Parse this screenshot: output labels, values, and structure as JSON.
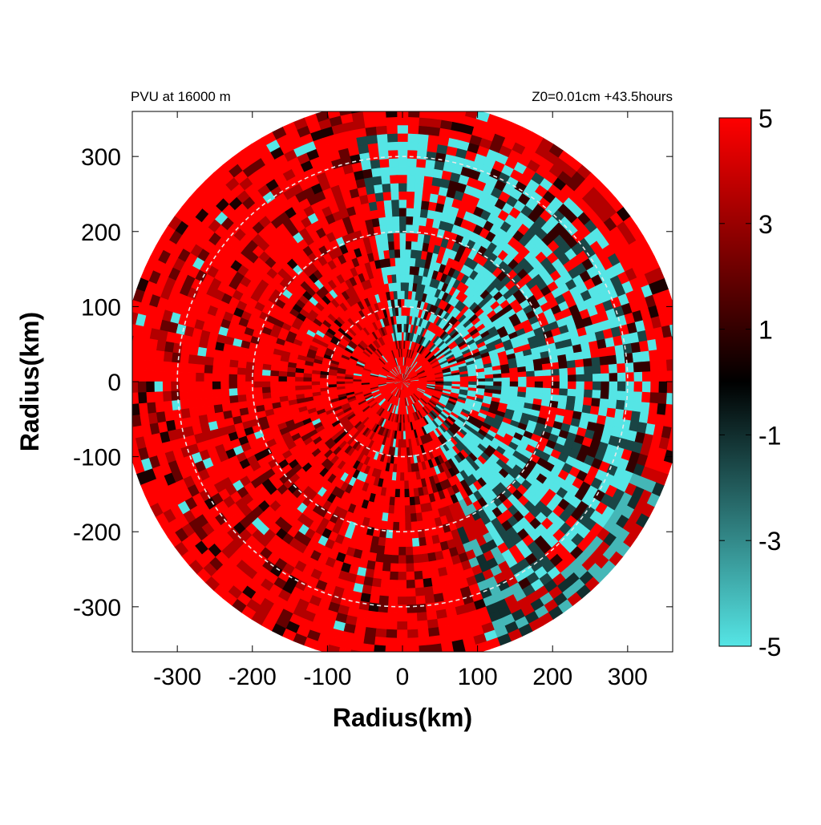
{
  "chart_data": {
    "type": "heatmap",
    "title_left": "PVU at 16000 m",
    "title_right": "Z0=0.01cm  +43.5hours",
    "xlabel": "Radius(km)",
    "ylabel": "Radius(km)",
    "xlim": [
      -360,
      360
    ],
    "ylim": [
      -360,
      360
    ],
    "x_ticks": [
      "-300",
      "-200",
      "-100",
      "0",
      "100",
      "200",
      "300"
    ],
    "y_ticks": [
      "300",
      "200",
      "100",
      "0",
      "-100",
      "-200",
      "-300"
    ],
    "x_tick_values": [
      -300,
      -200,
      -100,
      0,
      100,
      200,
      300
    ],
    "y_tick_values": [
      300,
      200,
      100,
      0,
      -100,
      -200,
      -300
    ],
    "domain_radius_km": 375,
    "range_rings_km": [
      100,
      200,
      300
    ],
    "colorbar": {
      "min": -5,
      "max": 5,
      "labels": [
        "5",
        "3",
        "1",
        "-1",
        "-3",
        "-5"
      ],
      "label_values": [
        5,
        3,
        1,
        -1,
        -3,
        -5
      ],
      "colors": [
        "#55e5e5",
        "#000000",
        "#ff0000"
      ]
    },
    "field_description_values": {
      "predominant_value": 5,
      "negative_region_azimuth_deg": [
        0,
        150
      ],
      "negative_region_radius_km": [
        50,
        375
      ]
    }
  }
}
